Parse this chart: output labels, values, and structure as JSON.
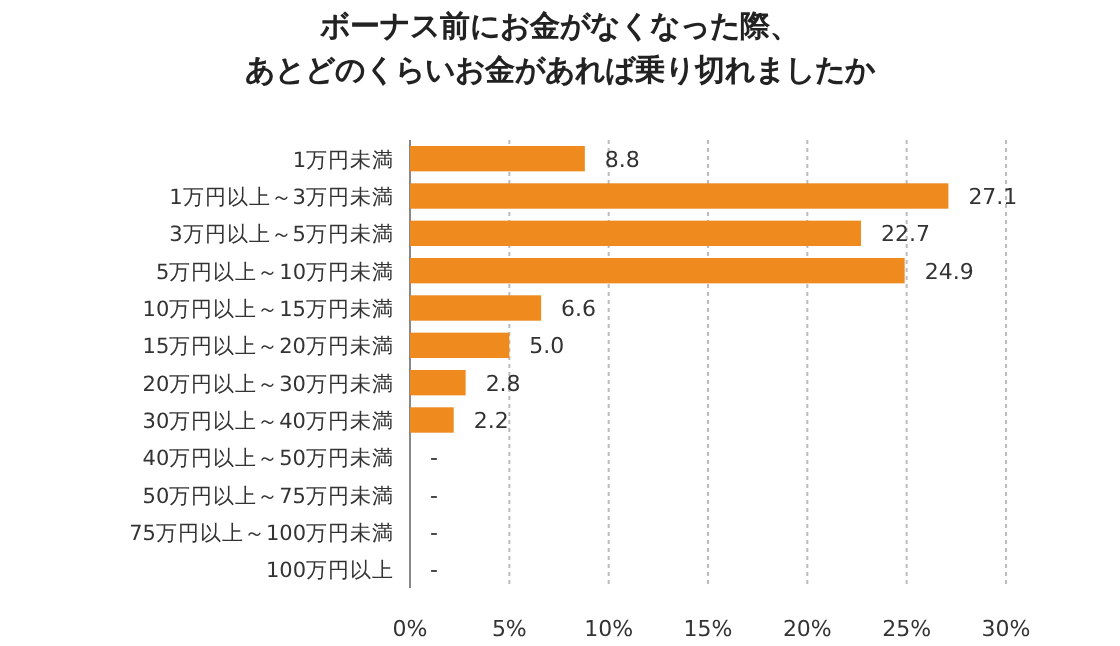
{
  "chart_data": {
    "type": "bar",
    "orientation": "horizontal",
    "title": "ボーナス前にお金がなくなった際、",
    "subtitle": "あとどのくらいお金があれば乗り切れましたか",
    "categories": [
      "1万円未満",
      "1万円以上～3万円未満",
      "3万円以上～5万円未満",
      "5万円以上～10万円未満",
      "10万円以上～15万円未満",
      "15万円以上～20万円未満",
      "20万円以上～30万円未満",
      "30万円以上～40万円未満",
      "40万円以上～50万円未満",
      "50万円以上～75万円未満",
      "75万円以上～100万円未満",
      "100万円以上"
    ],
    "values": [
      8.8,
      27.1,
      22.7,
      24.9,
      6.6,
      5.0,
      2.8,
      2.2,
      null,
      null,
      null,
      null
    ],
    "value_labels": [
      "8.8",
      "27.1",
      "22.7",
      "24.9",
      "6.6",
      "5.0",
      "2.8",
      "2.2",
      "-",
      "-",
      "-",
      "-"
    ],
    "color": "#ee8a1e",
    "xlim": [
      0,
      30
    ],
    "xticks": [
      {
        "value": 0,
        "label": "0%"
      },
      {
        "value": 5,
        "label": "5%"
      },
      {
        "value": 10,
        "label": "10%"
      },
      {
        "value": 15,
        "label": "15%"
      },
      {
        "value": 20,
        "label": "20%"
      },
      {
        "value": 25,
        "label": "25%"
      },
      {
        "value": 30,
        "label": "30%"
      }
    ],
    "grid": "x"
  }
}
